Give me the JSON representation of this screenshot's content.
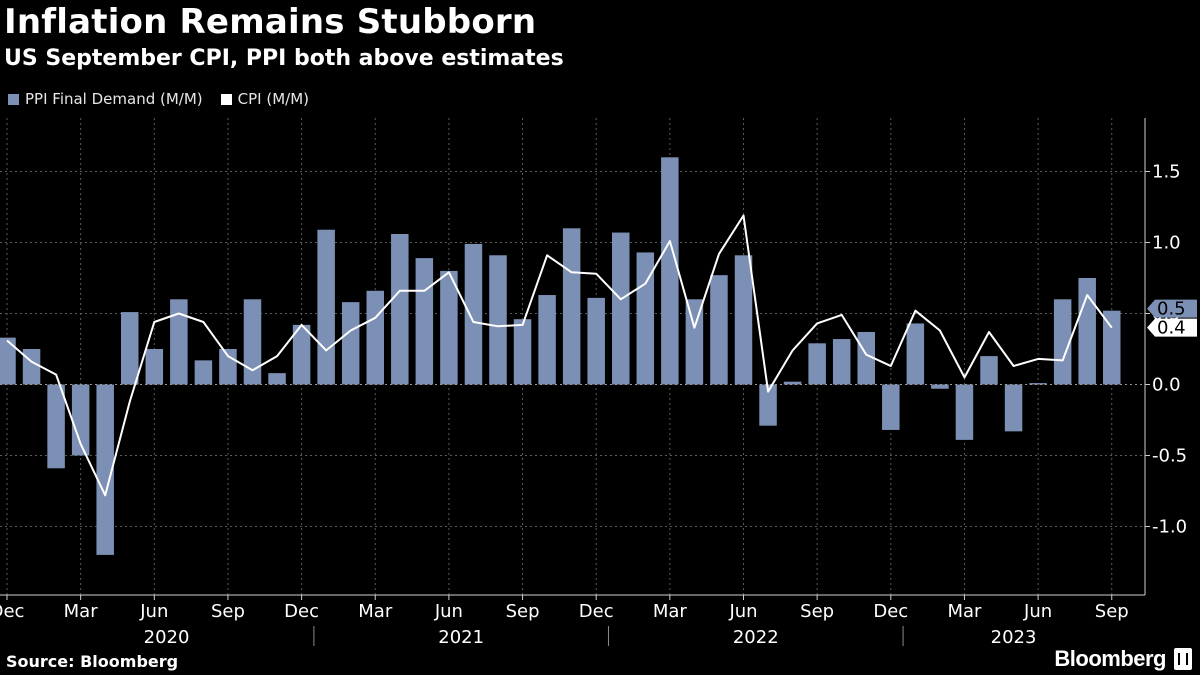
{
  "title": "Inflation Remains Stubborn",
  "subtitle": "US September CPI, PPI both above estimates",
  "source": "Source: Bloomberg",
  "brand": "Bloomberg",
  "colors": {
    "ppi": "#7b90b4",
    "cpi": "#ffffff",
    "background": "#000000",
    "grid": "#5a5a5a"
  },
  "chart_data": {
    "type": "bar+line",
    "title": "Inflation Remains Stubborn",
    "subtitle": "US September CPI, PPI both above estimates",
    "legend": [
      "PPI Final Demand (M/M)",
      "CPI (M/M)"
    ],
    "legend_position": "top-left",
    "ylim": [
      -1.4,
      1.8
    ],
    "yticks": [
      1.5,
      1.0,
      0.5,
      0.0,
      -0.5,
      -1.0
    ],
    "ytick_labels": [
      "1.5",
      "1.0",
      "0.5",
      "0.0",
      "-0.5",
      "-1.0"
    ],
    "grid": true,
    "months": [
      "Dec 2019",
      "Jan 2020",
      "Feb 2020",
      "Mar 2020",
      "Apr 2020",
      "May 2020",
      "Jun 2020",
      "Jul 2020",
      "Aug 2020",
      "Sep 2020",
      "Oct 2020",
      "Nov 2020",
      "Dec 2020",
      "Jan 2021",
      "Feb 2021",
      "Mar 2021",
      "Apr 2021",
      "May 2021",
      "Jun 2021",
      "Jul 2021",
      "Aug 2021",
      "Sep 2021",
      "Oct 2021",
      "Nov 2021",
      "Dec 2021",
      "Jan 2022",
      "Feb 2022",
      "Mar 2022",
      "Apr 2022",
      "May 2022",
      "Jun 2022",
      "Jul 2022",
      "Aug 2022",
      "Sep 2022",
      "Oct 2022",
      "Nov 2022",
      "Dec 2022",
      "Jan 2023",
      "Feb 2023",
      "Mar 2023",
      "Apr 2023",
      "May 2023",
      "Jun 2023",
      "Jul 2023",
      "Aug 2023",
      "Sep 2023"
    ],
    "x_tick_labels": [
      {
        "index": 0,
        "label": "Dec"
      },
      {
        "index": 3,
        "label": "Mar"
      },
      {
        "index": 6,
        "label": "Jun"
      },
      {
        "index": 9,
        "label": "Sep"
      },
      {
        "index": 12,
        "label": "Dec"
      },
      {
        "index": 15,
        "label": "Mar"
      },
      {
        "index": 18,
        "label": "Jun"
      },
      {
        "index": 21,
        "label": "Sep"
      },
      {
        "index": 24,
        "label": "Dec"
      },
      {
        "index": 27,
        "label": "Mar"
      },
      {
        "index": 30,
        "label": "Jun"
      },
      {
        "index": 33,
        "label": "Sep"
      },
      {
        "index": 36,
        "label": "Dec"
      },
      {
        "index": 39,
        "label": "Mar"
      },
      {
        "index": 42,
        "label": "Jun"
      },
      {
        "index": 45,
        "label": "Sep"
      }
    ],
    "year_labels": [
      {
        "from": 1,
        "to": 12,
        "label": "2020"
      },
      {
        "from": 13,
        "to": 24,
        "label": "2021"
      },
      {
        "from": 25,
        "to": 36,
        "label": "2022"
      },
      {
        "from": 37,
        "to": 45,
        "label": "2023"
      }
    ],
    "series": [
      {
        "name": "PPI Final Demand (M/M)",
        "type": "bar",
        "values": [
          0.33,
          0.25,
          -0.59,
          -0.5,
          -1.2,
          0.51,
          0.25,
          0.6,
          0.17,
          0.25,
          0.6,
          0.08,
          0.42,
          1.09,
          0.58,
          0.66,
          1.06,
          0.89,
          0.8,
          0.99,
          0.91,
          0.46,
          0.63,
          1.1,
          0.61,
          1.07,
          0.93,
          1.6,
          0.6,
          0.77,
          0.91,
          -0.29,
          0.02,
          0.29,
          0.32,
          0.37,
          -0.32,
          0.43,
          -0.03,
          -0.39,
          0.2,
          -0.33,
          0.01,
          0.6,
          0.75,
          0.52
        ]
      },
      {
        "name": "CPI (M/M)",
        "type": "line",
        "values": [
          0.31,
          0.16,
          0.07,
          -0.42,
          -0.78,
          -0.12,
          0.44,
          0.5,
          0.44,
          0.2,
          0.1,
          0.2,
          0.42,
          0.24,
          0.38,
          0.47,
          0.66,
          0.66,
          0.79,
          0.44,
          0.41,
          0.42,
          0.91,
          0.79,
          0.78,
          0.6,
          0.71,
          1.01,
          0.4,
          0.92,
          1.19,
          -0.05,
          0.24,
          0.43,
          0.49,
          0.21,
          0.13,
          0.52,
          0.38,
          0.05,
          0.37,
          0.13,
          0.18,
          0.17,
          0.63,
          0.4
        ]
      }
    ],
    "end_labels": [
      {
        "series": "PPI Final Demand (M/M)",
        "label": "0.5"
      },
      {
        "series": "CPI (M/M)",
        "label": "0.4"
      }
    ]
  }
}
